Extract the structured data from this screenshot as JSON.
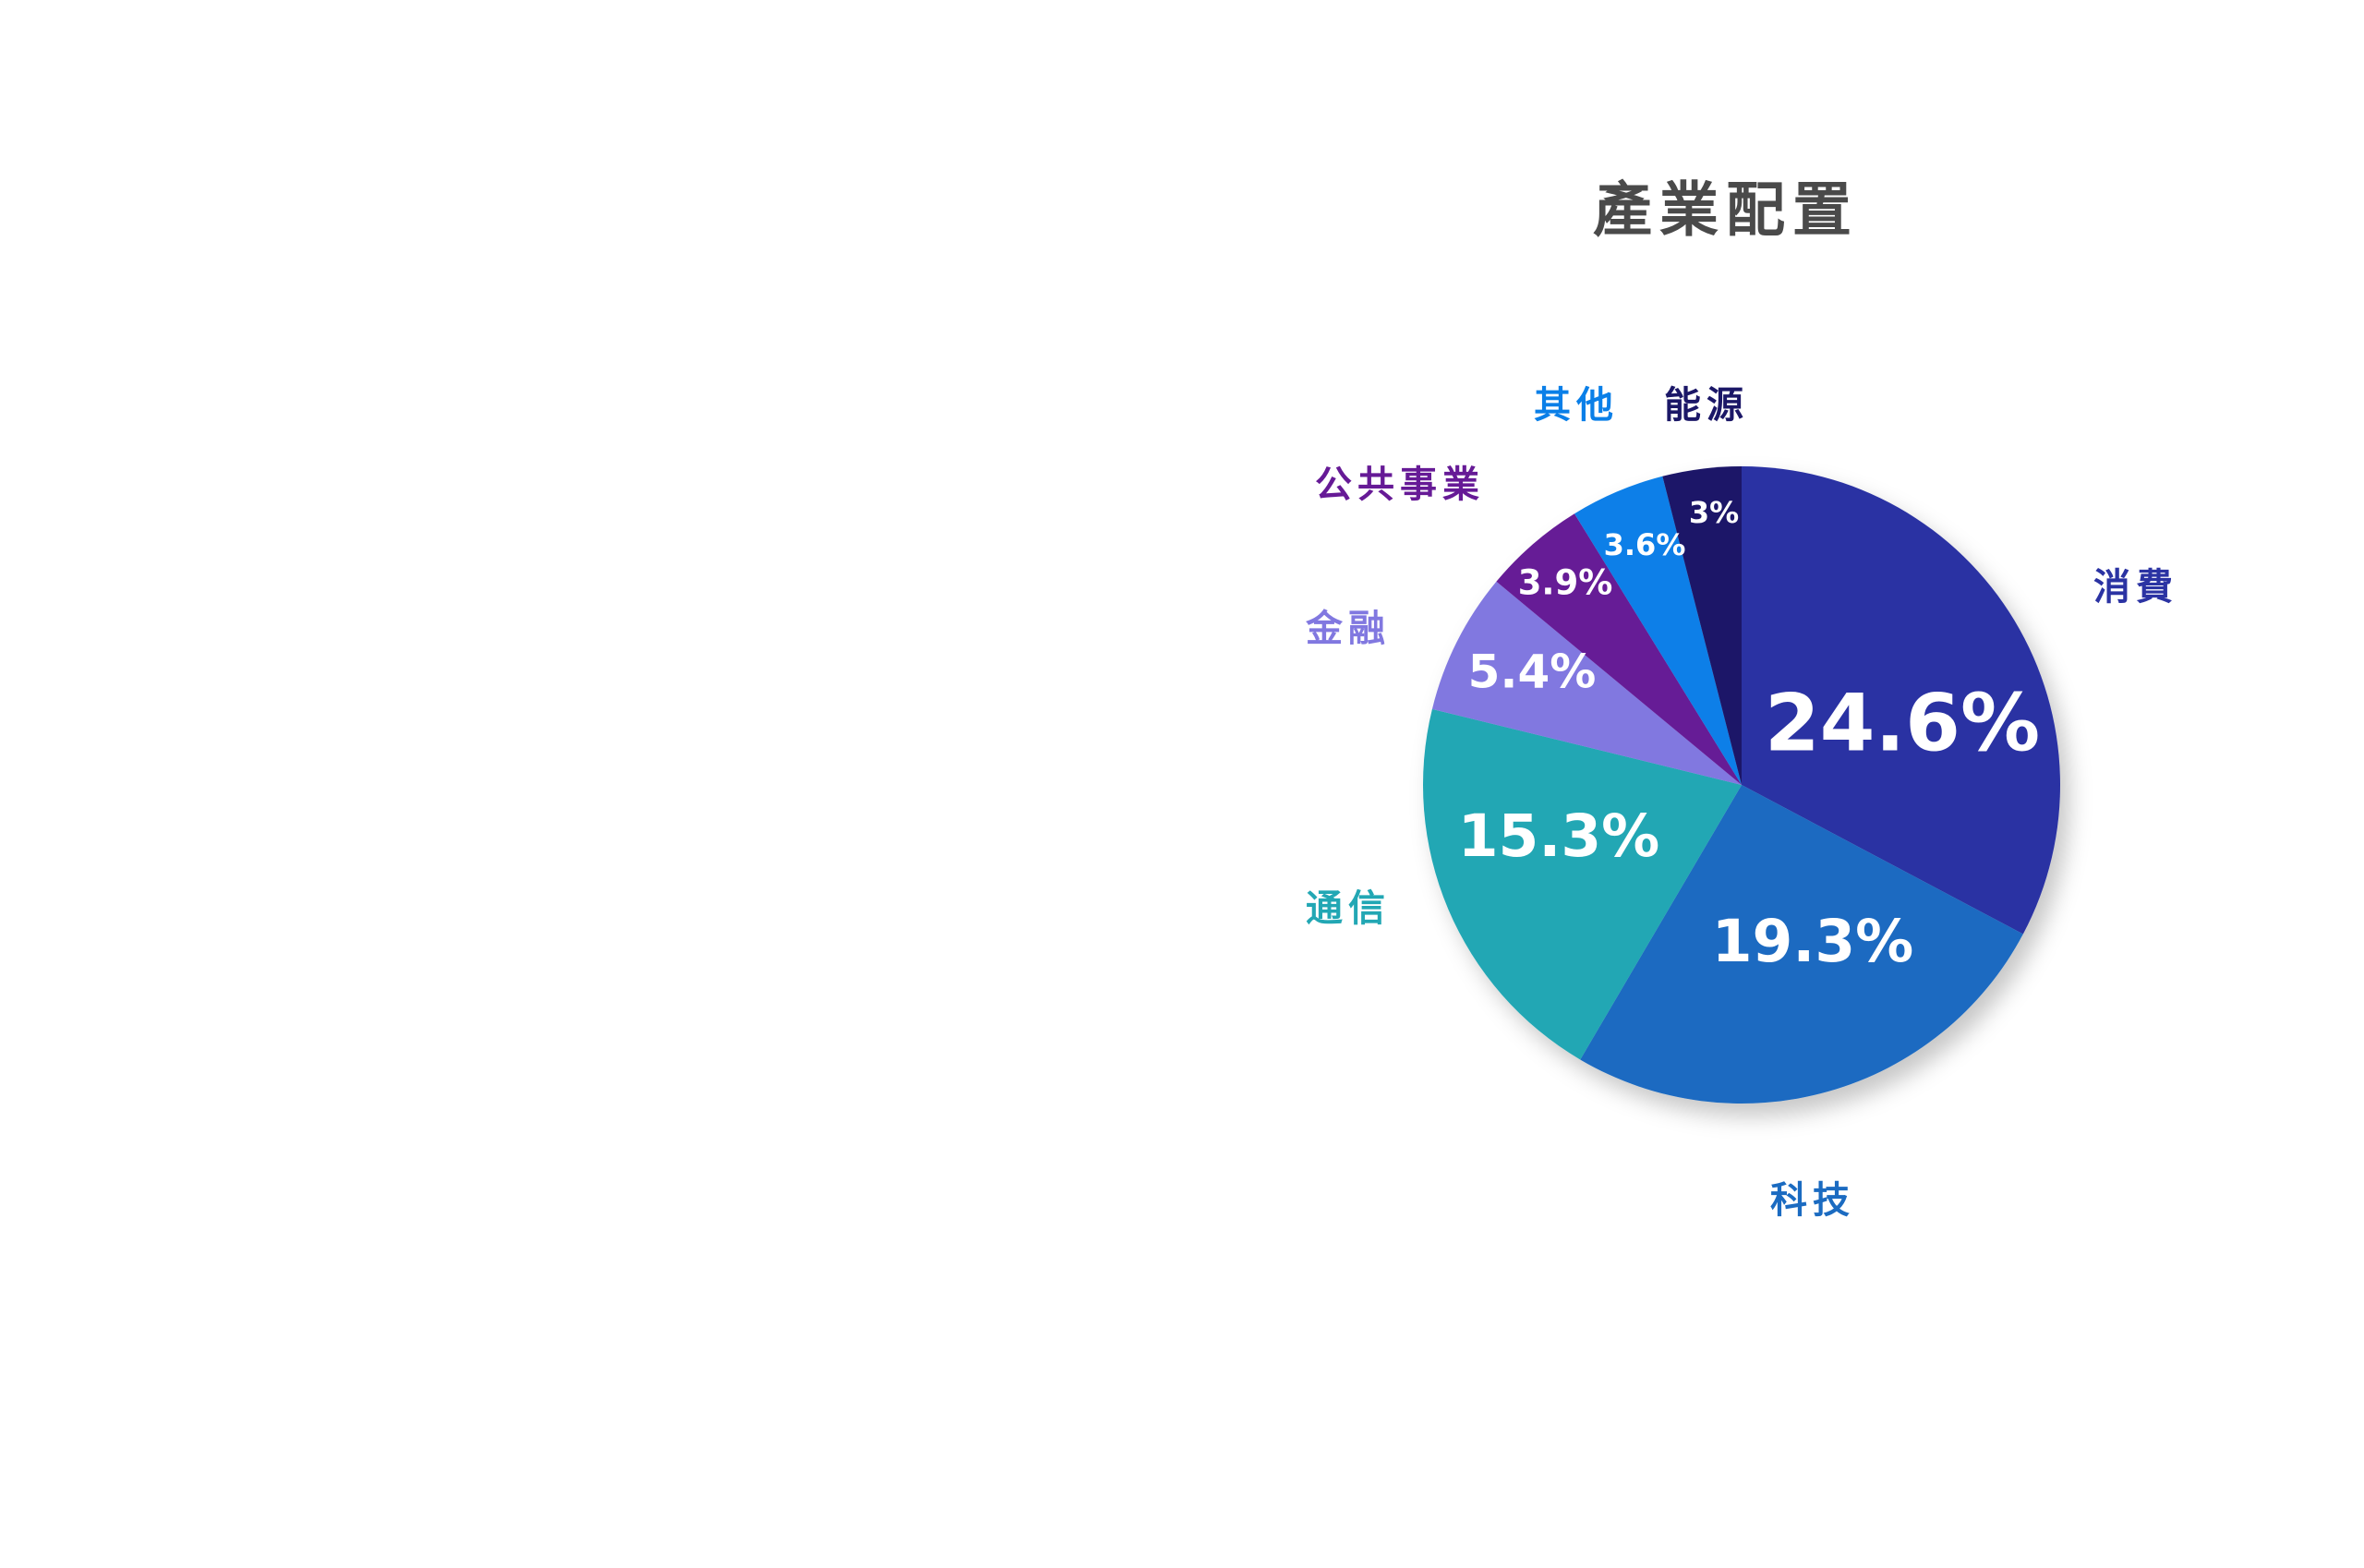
{
  "chart_data": {
    "type": "pie",
    "title": "產業配置",
    "categories": [
      "消費",
      "科技",
      "通信",
      "金融",
      "公共事業",
      "其他",
      "能源"
    ],
    "values": [
      24.6,
      19.3,
      15.3,
      5.4,
      3.9,
      3.6,
      3
    ],
    "value_labels": [
      "24.6%",
      "19.3%",
      "15.3%",
      "5.4%",
      "3.9%",
      "3.6%",
      "3%"
    ],
    "colors": [
      "#2b33a3",
      "#1b6bc1",
      "#22a7b4",
      "#8178e0",
      "#661a96",
      "#0a7fe8",
      "#1b1767"
    ]
  }
}
